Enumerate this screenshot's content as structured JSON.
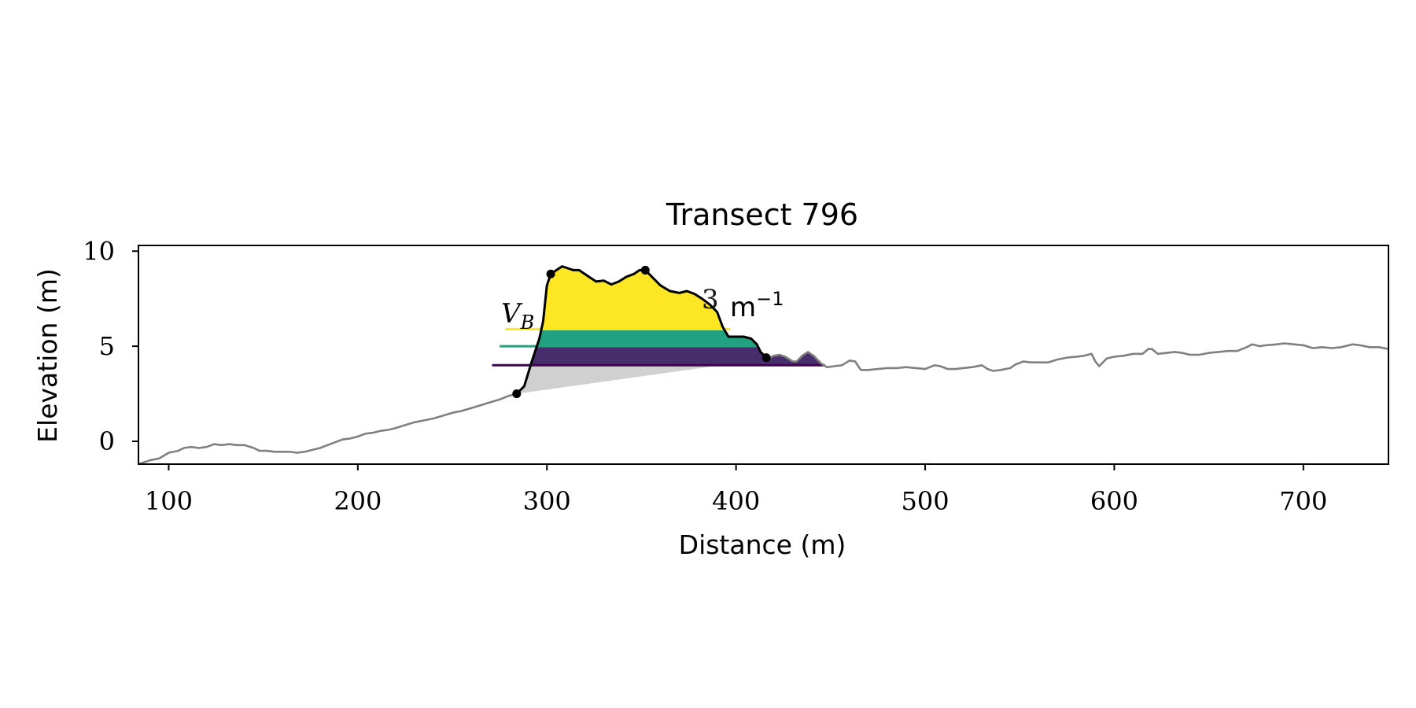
{
  "chart_data": {
    "type": "area",
    "title": "Transect 796",
    "xlabel": "Distance (m)",
    "ylabel": "Elevation (m)",
    "xlim": [
      84,
      745
    ],
    "ylim": [
      -1.2,
      10.3
    ],
    "x_ticks": [
      100,
      200,
      300,
      400,
      500,
      600,
      700
    ],
    "y_ticks": [
      0,
      5,
      10
    ],
    "grid": false,
    "annotation": {
      "text_visible_start": "V",
      "text_visible_sub": "B",
      "text_visible_end": "m",
      "text_visible_sup": "−1",
      "partial_glyph": "3"
    },
    "colors": {
      "profile_background": "#808080",
      "dune_outline": "#000000",
      "level_high": "#fde725",
      "level_mid": "#21a17f",
      "level_low": "#440154",
      "level_low_fill": "#462d6b",
      "below_base_fill": "#d0d0d0"
    },
    "series": [
      {
        "values": [
          [
            84,
            -1.2
          ],
          [
            90,
            -1.0
          ],
          [
            95,
            -0.9
          ],
          [
            100,
            -0.6
          ],
          [
            105,
            -0.5
          ],
          [
            108,
            -0.35
          ],
          [
            112,
            -0.3
          ],
          [
            116,
            -0.35
          ],
          [
            120,
            -0.3
          ],
          [
            124,
            -0.15
          ],
          [
            128,
            -0.2
          ],
          [
            132,
            -0.15
          ],
          [
            136,
            -0.2
          ],
          [
            140,
            -0.2
          ],
          [
            145,
            -0.35
          ],
          [
            148,
            -0.5
          ],
          [
            152,
            -0.5
          ],
          [
            156,
            -0.55
          ],
          [
            160,
            -0.55
          ],
          [
            164,
            -0.55
          ],
          [
            168,
            -0.6
          ],
          [
            172,
            -0.55
          ],
          [
            176,
            -0.45
          ],
          [
            180,
            -0.35
          ],
          [
            184,
            -0.2
          ],
          [
            188,
            -0.05
          ],
          [
            192,
            0.1
          ],
          [
            196,
            0.15
          ],
          [
            200,
            0.25
          ],
          [
            204,
            0.4
          ],
          [
            208,
            0.45
          ],
          [
            212,
            0.55
          ],
          [
            216,
            0.6
          ],
          [
            220,
            0.7
          ],
          [
            225,
            0.85
          ],
          [
            230,
            1.0
          ],
          [
            235,
            1.1
          ],
          [
            240,
            1.2
          ],
          [
            245,
            1.35
          ],
          [
            250,
            1.5
          ],
          [
            255,
            1.6
          ],
          [
            260,
            1.75
          ],
          [
            265,
            1.9
          ],
          [
            270,
            2.05
          ],
          [
            275,
            2.2
          ],
          [
            280,
            2.4
          ],
          [
            285,
            2.5
          ]
        ]
      },
      {
        "values": [
          [
            418,
            4.4
          ],
          [
            420,
            4.5
          ],
          [
            423,
            4.55
          ],
          [
            426,
            4.45
          ],
          [
            430,
            4.2
          ],
          [
            432,
            4.2
          ],
          [
            435,
            4.5
          ],
          [
            438,
            4.7
          ],
          [
            441,
            4.5
          ],
          [
            445,
            4.1
          ],
          [
            448,
            3.9
          ],
          [
            452,
            3.95
          ],
          [
            456,
            4.0
          ],
          [
            460,
            4.25
          ],
          [
            463,
            4.2
          ],
          [
            466,
            3.75
          ],
          [
            470,
            3.75
          ],
          [
            475,
            3.8
          ],
          [
            480,
            3.85
          ],
          [
            485,
            3.85
          ],
          [
            490,
            3.9
          ],
          [
            495,
            3.85
          ],
          [
            500,
            3.8
          ],
          [
            505,
            4.0
          ],
          [
            508,
            3.95
          ],
          [
            512,
            3.8
          ],
          [
            516,
            3.8
          ],
          [
            520,
            3.85
          ],
          [
            525,
            3.9
          ],
          [
            530,
            4.0
          ],
          [
            533,
            3.8
          ],
          [
            536,
            3.7
          ],
          [
            540,
            3.75
          ],
          [
            545,
            3.85
          ],
          [
            548,
            4.05
          ],
          [
            552,
            4.2
          ],
          [
            556,
            4.15
          ],
          [
            560,
            4.15
          ],
          [
            565,
            4.15
          ],
          [
            570,
            4.3
          ],
          [
            575,
            4.4
          ],
          [
            580,
            4.45
          ],
          [
            584,
            4.5
          ],
          [
            588,
            4.6
          ],
          [
            590,
            4.2
          ],
          [
            592,
            3.95
          ],
          [
            596,
            4.35
          ],
          [
            600,
            4.45
          ],
          [
            605,
            4.5
          ],
          [
            610,
            4.6
          ],
          [
            615,
            4.6
          ],
          [
            618,
            4.85
          ],
          [
            620,
            4.85
          ],
          [
            623,
            4.6
          ],
          [
            628,
            4.65
          ],
          [
            632,
            4.7
          ],
          [
            636,
            4.65
          ],
          [
            640,
            4.55
          ],
          [
            645,
            4.55
          ],
          [
            650,
            4.65
          ],
          [
            655,
            4.7
          ],
          [
            660,
            4.75
          ],
          [
            665,
            4.75
          ],
          [
            670,
            4.95
          ],
          [
            673,
            5.1
          ],
          [
            677,
            5.0
          ],
          [
            680,
            5.05
          ],
          [
            686,
            5.1
          ],
          [
            690,
            5.15
          ],
          [
            695,
            5.1
          ],
          [
            700,
            5.05
          ],
          [
            705,
            4.9
          ],
          [
            710,
            4.95
          ],
          [
            715,
            4.9
          ],
          [
            720,
            4.95
          ],
          [
            726,
            5.1
          ],
          [
            730,
            5.05
          ],
          [
            735,
            4.95
          ],
          [
            740,
            4.95
          ],
          [
            745,
            4.85
          ]
        ]
      },
      {
        "values": [
          [
            284,
            2.5
          ],
          [
            288,
            2.9
          ],
          [
            292,
            4.2
          ],
          [
            296,
            5.4
          ],
          [
            298,
            6.3
          ],
          [
            300,
            8.2
          ],
          [
            302,
            8.8
          ],
          [
            305,
            9.0
          ],
          [
            308,
            9.2
          ],
          [
            311,
            9.1
          ],
          [
            314,
            9.0
          ],
          [
            317,
            9.0
          ],
          [
            320,
            8.8
          ],
          [
            323,
            8.6
          ],
          [
            326,
            8.4
          ],
          [
            330,
            8.45
          ],
          [
            334,
            8.25
          ],
          [
            338,
            8.4
          ],
          [
            342,
            8.65
          ],
          [
            346,
            8.8
          ],
          [
            349,
            9.0
          ],
          [
            352,
            9.0
          ],
          [
            355,
            8.7
          ],
          [
            360,
            8.2
          ],
          [
            365,
            7.9
          ],
          [
            370,
            7.8
          ],
          [
            374,
            7.9
          ],
          [
            378,
            7.75
          ],
          [
            382,
            7.5
          ],
          [
            386,
            7.2
          ],
          [
            390,
            6.8
          ],
          [
            393,
            6.0
          ],
          [
            396,
            5.5
          ],
          [
            400,
            5.5
          ],
          [
            404,
            5.5
          ],
          [
            408,
            5.4
          ],
          [
            411,
            5.1
          ],
          [
            413,
            4.7
          ],
          [
            416,
            4.4
          ]
        ]
      }
    ],
    "markers": [
      [
        284,
        2.5
      ],
      [
        302,
        8.8
      ],
      [
        352,
        9.0
      ],
      [
        416,
        4.4
      ]
    ],
    "levels": [
      {
        "y": 5.9,
        "line_x": [
          278,
          397
        ]
      },
      {
        "y": 5.0,
        "line_x": [
          275,
          411
        ]
      },
      {
        "y": 4.0,
        "line_x": [
          271,
          447
        ]
      }
    ],
    "base_line": [
      [
        284,
        2.5
      ],
      [
        392,
        4.0
      ]
    ]
  }
}
